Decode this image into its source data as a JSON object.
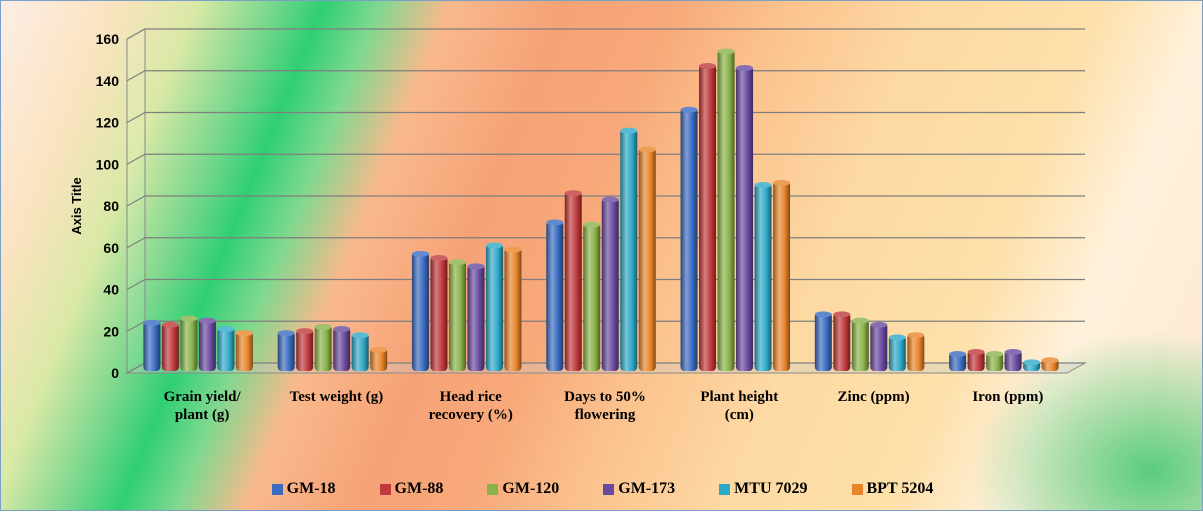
{
  "chart_data": {
    "type": "bar",
    "ylabel": "Axis Title",
    "ylim": [
      0,
      160
    ],
    "yticks": [
      0,
      20,
      40,
      60,
      80,
      100,
      120,
      140,
      160
    ],
    "grid": true,
    "legend_position": "bottom",
    "style": "3d-clustered-column",
    "categories": [
      [
        "Grain yield/",
        "plant (g)"
      ],
      [
        "Test weight (g)"
      ],
      [
        "Head rice",
        "recovery (%)"
      ],
      [
        "Days to 50%",
        "flowering"
      ],
      [
        "Plant height",
        "(cm)"
      ],
      [
        "Zinc (ppm)"
      ],
      [
        "Iron (ppm)"
      ]
    ],
    "series": [
      {
        "name": "GM-18",
        "color": "#3a6bc0",
        "values": [
          26,
          21,
          59,
          74,
          128,
          30,
          11
        ]
      },
      {
        "name": "GM-88",
        "color": "#c0393b",
        "values": [
          25,
          22,
          57,
          88,
          149,
          30,
          12
        ]
      },
      {
        "name": "GM-120",
        "color": "#8ab24a",
        "values": [
          28,
          24,
          55,
          73,
          156,
          27,
          11
        ]
      },
      {
        "name": "GM-173",
        "color": "#6a4aa0",
        "values": [
          27,
          23,
          53,
          85,
          148,
          25,
          12
        ]
      },
      {
        "name": "MTU 7029",
        "color": "#2fa9c8",
        "values": [
          23,
          20,
          63,
          118,
          92,
          19,
          7
        ]
      },
      {
        "name": "BPT 5204",
        "color": "#e8842a",
        "values": [
          21,
          13,
          61,
          109,
          93,
          20,
          8
        ]
      }
    ]
  }
}
